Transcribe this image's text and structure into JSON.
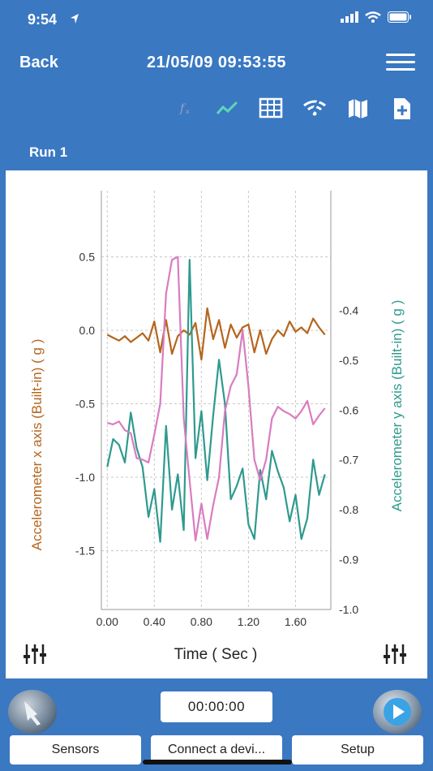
{
  "status": {
    "time": "9:54"
  },
  "nav": {
    "back": "Back",
    "title": "21/05/09 09:53:55"
  },
  "toolbar": {
    "icons": [
      "fx-icon",
      "line-chart-icon",
      "table-icon",
      "wifi-signal-icon",
      "map-icon",
      "add-file-icon"
    ]
  },
  "run_label": "Run 1",
  "timer": "00:00:00",
  "buttons": {
    "sensors": "Sensors",
    "connect": "Connect a devi...",
    "setup": "Setup"
  },
  "colors": {
    "accent": "#3a78c2",
    "series_x": "#b5651d",
    "series_y": "#2e9a8e",
    "series_pink": "#d97cc0"
  },
  "chart_data": {
    "type": "line",
    "xlabel": "Time ( Sec )",
    "ylabel_left": "Accelerometer x axis (Built-in) ( g )",
    "ylabel_right": "Accelerometer y axis (Built-in) ( g )",
    "xlim": [
      -0.05,
      1.9
    ],
    "ylim_left": [
      -1.9,
      0.95
    ],
    "ylim_right": [
      -1.0,
      -0.16
    ],
    "x_ticks": [
      "0.00",
      "0.40",
      "0.80",
      "1.20",
      "1.60"
    ],
    "y_ticks_left": [
      "0.5",
      "0.0",
      "-0.5",
      "-1.0",
      "-1.5"
    ],
    "y_ticks_right": [
      "-0.4",
      "-0.5",
      "-0.6",
      "-0.7",
      "-0.8",
      "-0.9",
      "-1.0"
    ],
    "grid": true,
    "series": [
      {
        "axis": "left",
        "color": "#b5651d",
        "x": [
          0,
          0.05,
          0.1,
          0.15,
          0.2,
          0.25,
          0.3,
          0.35,
          0.4,
          0.45,
          0.5,
          0.55,
          0.6,
          0.65,
          0.7,
          0.75,
          0.8,
          0.85,
          0.9,
          0.95,
          1.0,
          1.05,
          1.1,
          1.15,
          1.2,
          1.25,
          1.3,
          1.35,
          1.4,
          1.45,
          1.5,
          1.55,
          1.6,
          1.65,
          1.7,
          1.75,
          1.8,
          1.85
        ],
        "y": [
          -0.03,
          -0.05,
          -0.07,
          -0.04,
          -0.08,
          -0.05,
          -0.02,
          -0.07,
          0.06,
          -0.15,
          0.07,
          -0.16,
          -0.04,
          0.0,
          -0.03,
          0.05,
          -0.2,
          0.15,
          -0.06,
          0.07,
          -0.12,
          0.04,
          -0.05,
          0.02,
          0.04,
          -0.15,
          0.0,
          -0.16,
          -0.06,
          0.0,
          -0.04,
          0.06,
          -0.01,
          0.02,
          -0.02,
          0.08,
          0.02,
          -0.03
        ]
      },
      {
        "axis": "left",
        "color": "#2e9a8e",
        "x": [
          0,
          0.05,
          0.1,
          0.15,
          0.2,
          0.25,
          0.3,
          0.35,
          0.4,
          0.45,
          0.5,
          0.55,
          0.6,
          0.65,
          0.7,
          0.75,
          0.8,
          0.85,
          0.9,
          0.95,
          1.0,
          1.05,
          1.1,
          1.15,
          1.2,
          1.25,
          1.3,
          1.35,
          1.4,
          1.45,
          1.5,
          1.55,
          1.6,
          1.65,
          1.7,
          1.75,
          1.8,
          1.85
        ],
        "y": [
          -0.93,
          -0.74,
          -0.78,
          -0.9,
          -0.56,
          -0.8,
          -0.93,
          -1.27,
          -1.08,
          -1.44,
          -0.65,
          -1.22,
          -0.98,
          -1.36,
          0.48,
          -0.87,
          -0.55,
          -1.02,
          -0.58,
          -0.2,
          -0.5,
          -1.15,
          -1.06,
          -0.94,
          -1.32,
          -1.42,
          -0.95,
          -1.15,
          -0.82,
          -0.96,
          -1.07,
          -1.3,
          -1.12,
          -1.42,
          -1.28,
          -0.88,
          -1.12,
          -0.98
        ]
      },
      {
        "axis": "left",
        "color": "#d97cc0",
        "x": [
          0,
          0.05,
          0.1,
          0.15,
          0.2,
          0.25,
          0.3,
          0.35,
          0.4,
          0.45,
          0.5,
          0.55,
          0.6,
          0.65,
          0.7,
          0.75,
          0.8,
          0.85,
          0.9,
          0.95,
          1.0,
          1.05,
          1.1,
          1.15,
          1.2,
          1.25,
          1.3,
          1.35,
          1.4,
          1.45,
          1.5,
          1.55,
          1.6,
          1.65,
          1.7,
          1.75,
          1.8,
          1.85
        ],
        "y": [
          -0.63,
          -0.64,
          -0.62,
          -0.68,
          -0.7,
          -0.87,
          -0.88,
          -0.9,
          -0.71,
          -0.5,
          0.25,
          0.48,
          0.5,
          -0.6,
          -1.02,
          -1.43,
          -1.18,
          -1.42,
          -1.19,
          -1.0,
          -0.55,
          -0.38,
          -0.3,
          0.0,
          -0.38,
          -0.88,
          -1.02,
          -0.88,
          -0.6,
          -0.52,
          -0.55,
          -0.57,
          -0.6,
          -0.55,
          -0.48,
          -0.64,
          -0.58,
          -0.53
        ]
      }
    ]
  }
}
